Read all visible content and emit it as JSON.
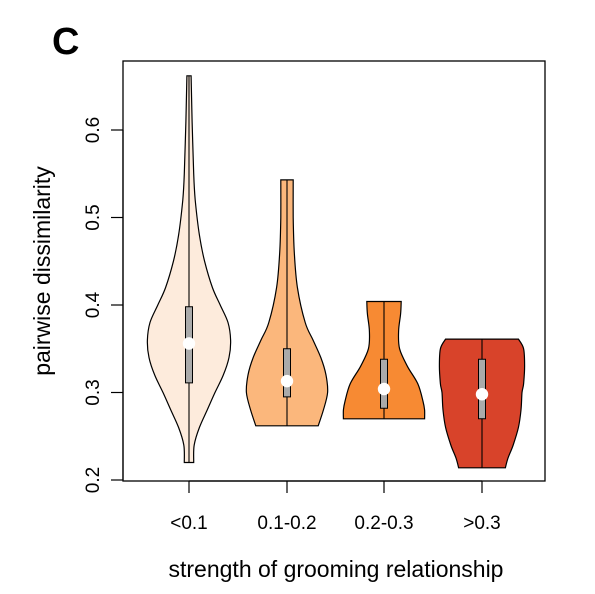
{
  "panel_label": "C",
  "chart_data": {
    "type": "violin",
    "xlabel": "strength of grooming relationship",
    "ylabel": "pairwise dissimilarity",
    "ylim": [
      0.2,
      0.66
    ],
    "yticks": [
      "0.2",
      "0.3",
      "0.4",
      "0.5",
      "0.6"
    ],
    "grid": false,
    "legend": "none",
    "categories": [
      "<0.1",
      "0.1-0.2",
      "0.2-0.3",
      ">0.3"
    ],
    "colors": [
      "#fdebdc",
      "#fbb77c",
      "#f78a33",
      "#d8432a"
    ],
    "groups": [
      {
        "label": "<0.1",
        "min": 0.22,
        "q1": 0.311,
        "median": 0.356,
        "q3": 0.398,
        "max": 0.662,
        "density": [
          [
            0.662,
            0.004
          ],
          [
            0.61,
            0.006
          ],
          [
            0.55,
            0.009
          ],
          [
            0.52,
            0.012
          ],
          [
            0.48,
            0.02
          ],
          [
            0.45,
            0.03
          ],
          [
            0.42,
            0.045
          ],
          [
            0.4,
            0.06
          ],
          [
            0.38,
            0.075
          ],
          [
            0.36,
            0.08
          ],
          [
            0.34,
            0.077
          ],
          [
            0.32,
            0.066
          ],
          [
            0.3,
            0.05
          ],
          [
            0.28,
            0.035
          ],
          [
            0.26,
            0.02
          ],
          [
            0.24,
            0.01
          ],
          [
            0.22,
            0.009
          ]
        ]
      },
      {
        "label": "0.1-0.2",
        "min": 0.262,
        "q1": 0.295,
        "median": 0.313,
        "q3": 0.35,
        "max": 0.543,
        "density": [
          [
            0.543,
            0.012
          ],
          [
            0.5,
            0.012
          ],
          [
            0.46,
            0.014
          ],
          [
            0.42,
            0.02
          ],
          [
            0.38,
            0.035
          ],
          [
            0.36,
            0.05
          ],
          [
            0.34,
            0.065
          ],
          [
            0.32,
            0.075
          ],
          [
            0.3,
            0.078
          ],
          [
            0.28,
            0.07
          ],
          [
            0.262,
            0.06
          ]
        ]
      },
      {
        "label": "0.2-0.3",
        "min": 0.27,
        "q1": 0.282,
        "median": 0.304,
        "q3": 0.338,
        "max": 0.404,
        "density": [
          [
            0.404,
            0.033
          ],
          [
            0.39,
            0.032
          ],
          [
            0.37,
            0.028
          ],
          [
            0.35,
            0.03
          ],
          [
            0.33,
            0.045
          ],
          [
            0.31,
            0.065
          ],
          [
            0.29,
            0.075
          ],
          [
            0.28,
            0.078
          ],
          [
            0.27,
            0.078
          ]
        ]
      },
      {
        "label": ">0.3",
        "min": 0.214,
        "q1": 0.27,
        "median": 0.298,
        "q3": 0.338,
        "max": 0.361,
        "density": [
          [
            0.361,
            0.07
          ],
          [
            0.35,
            0.08
          ],
          [
            0.33,
            0.082
          ],
          [
            0.31,
            0.08
          ],
          [
            0.3,
            0.077
          ],
          [
            0.28,
            0.075
          ],
          [
            0.26,
            0.07
          ],
          [
            0.24,
            0.06
          ],
          [
            0.225,
            0.05
          ],
          [
            0.214,
            0.045
          ]
        ]
      }
    ]
  }
}
